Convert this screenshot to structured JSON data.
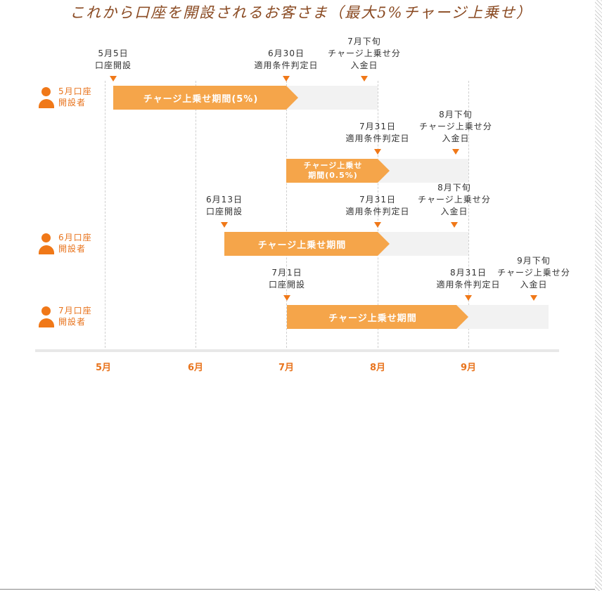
{
  "title": "これから口座を開設されるお客さま（最大5%チャージ上乗せ）",
  "months": [
    "5月",
    "6月",
    "7月",
    "8月",
    "9月"
  ],
  "groups": [
    {
      "line1": "5月口座",
      "line2": "開設者"
    },
    {
      "line1": "6月口座",
      "line2": "開設者"
    },
    {
      "line1": "7月口座",
      "line2": "開設者"
    }
  ],
  "labels": {
    "may5": [
      "5月5日",
      "口座開設"
    ],
    "jun30": [
      "6月30日",
      "適用条件判定日"
    ],
    "jul_late": [
      "7月下旬",
      "チャージ上乗せ分",
      "入金日"
    ],
    "jul31_a": [
      "7月31日",
      "適用条件判定日"
    ],
    "aug_late_a": [
      "8月下旬",
      "チャージ上乗せ分",
      "入金日"
    ],
    "jun13": [
      "6月13日",
      "口座開設"
    ],
    "jul31_b": [
      "7月31日",
      "適用条件判定日"
    ],
    "aug_late_b": [
      "8月下旬",
      "チャージ上乗せ分",
      "入金日"
    ],
    "jul1": [
      "7月1日",
      "口座開設"
    ],
    "aug31": [
      "8月31日",
      "適用条件判定日"
    ],
    "sep_late": [
      "9月下旬",
      "チャージ上乗せ分",
      "入金日"
    ]
  },
  "bars": {
    "b1": [
      "チャージ上乗せ期間(5%)"
    ],
    "b2": [
      "チャージ上乗せ",
      "期間(0.5%)"
    ],
    "b3": [
      "チャージ上乗せ期間"
    ],
    "b4": [
      "チャージ上乗せ期間"
    ]
  },
  "colors": {
    "accent": "#f07818",
    "bar": "#f5a54a",
    "bar_bg": "#f2f2f2",
    "title": "#8a4a22"
  },
  "icons": {
    "person": "person-icon",
    "marker": "triangle-down-icon"
  }
}
